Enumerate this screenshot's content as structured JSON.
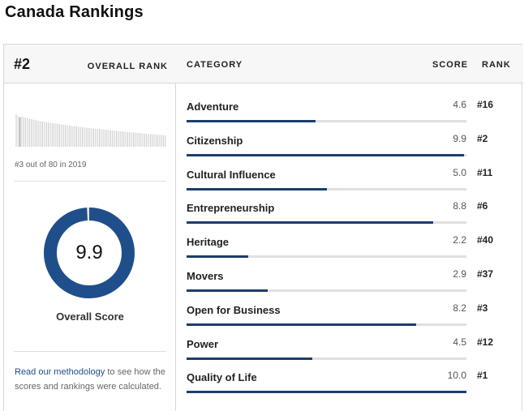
{
  "page": {
    "title": "Canada Rankings"
  },
  "overall": {
    "rank": "#2",
    "rank_label": "OVERALL RANK",
    "rank_note": "#3 out of 80 in 2019",
    "score": "9.9",
    "score_fraction": 0.99,
    "score_label": "Overall Score"
  },
  "methodology": {
    "link_text": "Read our methodology",
    "rest_text": " to see how the scores and rankings were calculated."
  },
  "table": {
    "headers": {
      "category": "CATEGORY",
      "score": "SCORE",
      "rank": "RANK"
    },
    "rows": [
      {
        "category": "Adventure",
        "score": "4.6",
        "rank": "#16"
      },
      {
        "category": "Citizenship",
        "score": "9.9",
        "rank": "#2"
      },
      {
        "category": "Cultural Influence",
        "score": "5.0",
        "rank": "#11"
      },
      {
        "category": "Entrepreneurship",
        "score": "8.8",
        "rank": "#6"
      },
      {
        "category": "Heritage",
        "score": "2.2",
        "rank": "#40"
      },
      {
        "category": "Movers",
        "score": "2.9",
        "rank": "#37"
      },
      {
        "category": "Open for Business",
        "score": "8.2",
        "rank": "#3"
      },
      {
        "category": "Power",
        "score": "4.5",
        "rank": "#12"
      },
      {
        "category": "Quality of Life",
        "score": "10.0",
        "rank": "#1"
      }
    ]
  },
  "colors": {
    "accent": "#1b3e6b",
    "donut": "#1f4f8a",
    "track": "#e0e0e0",
    "spark": "#c4c4c4"
  },
  "icons": {
    "sparkline": "country-rank-distribution"
  }
}
